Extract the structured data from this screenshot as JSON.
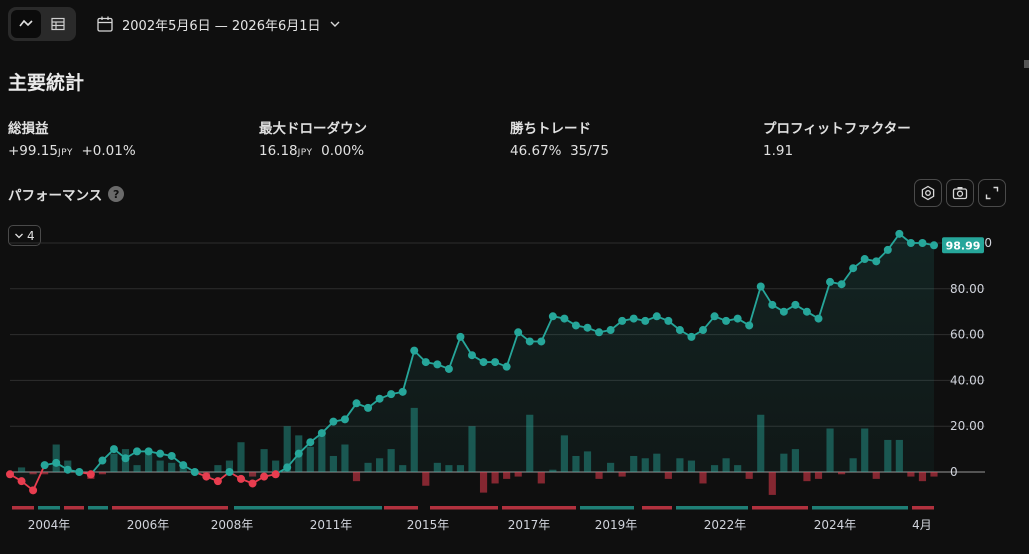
{
  "toolbar": {
    "chart_view_icon": "line-chart-icon",
    "table_view_icon": "table-icon",
    "calendar_icon": "calendar-icon",
    "date_range": "2002年5月6日 — 2026年6月1日"
  },
  "header": {
    "title": "主要統計"
  },
  "stats": {
    "net_profit": {
      "label": "総損益",
      "value": "+99.15",
      "unit": "JPY",
      "percent": "+0.01%"
    },
    "max_drawdown": {
      "label": "最大ドローダウン",
      "value": "16.18",
      "unit": "JPY",
      "percent": "0.00%"
    },
    "win_trades": {
      "label": "勝ちトレード",
      "percent": "46.67%",
      "ratio": "35/75"
    },
    "profit_factor": {
      "label": "プロフィットファクター",
      "value": "1.91"
    }
  },
  "performance": {
    "title": "パフォーマンス",
    "help": "?",
    "collapse_count": "4",
    "settings_icon": "settings-icon",
    "screenshot_icon": "camera-icon",
    "fullscreen_icon": "fullscreen-icon"
  },
  "colors": {
    "up": "#26a69a",
    "down": "#e83d4f",
    "background": "#0f0f0f"
  },
  "chart_data": {
    "type": "line",
    "series": [
      {
        "values": [
          -1,
          -4,
          -8,
          3,
          4,
          1,
          0,
          -1,
          5,
          10,
          6,
          9,
          9,
          8,
          7,
          3,
          0,
          -2,
          -4,
          0,
          -3,
          -5,
          -2,
          -1,
          2,
          8,
          13,
          17,
          22,
          23,
          30,
          28,
          32,
          34,
          35,
          53,
          48,
          47,
          45,
          59,
          51,
          48,
          48,
          46,
          61,
          57,
          57,
          68,
          67,
          64,
          63,
          61,
          62,
          66,
          67,
          66,
          68,
          66,
          62,
          59,
          62,
          68,
          66,
          67,
          64,
          81,
          73,
          70,
          73,
          70,
          67,
          83,
          82,
          89,
          93,
          92,
          97,
          104,
          100,
          100,
          99
        ]
      }
    ],
    "bars": [
      -1,
      2,
      -1,
      -1,
      12,
      5,
      -1,
      -3,
      -1,
      8,
      10,
      3,
      8,
      5,
      4,
      2,
      -1,
      -2,
      3,
      5,
      13,
      -2,
      10,
      5,
      20,
      16,
      11,
      18,
      7,
      12,
      -4,
      4,
      6,
      10,
      3,
      28,
      -6,
      4,
      3,
      3,
      20,
      -9,
      -5,
      -3,
      -2,
      25,
      -5,
      1,
      16,
      7,
      9,
      -3,
      4,
      -2,
      7,
      6,
      8,
      -3,
      6,
      5,
      -5,
      3,
      6,
      3,
      -3,
      25,
      -10,
      8,
      10,
      -4,
      -3,
      19,
      -1,
      6,
      19,
      -3,
      14,
      14,
      -2,
      -4,
      -2
    ],
    "last_value_label": "98.99",
    "y_ticks": [
      "100.00",
      "80.00",
      "60.00",
      "40.00",
      "20.00",
      "0"
    ],
    "ylim": [
      -15,
      108
    ],
    "x_ticks": [
      "2004年",
      "2006年",
      "2008年",
      "2011年",
      "2015年",
      "2017年",
      "2019年",
      "2022年",
      "2024年",
      "4月"
    ],
    "grid": true
  }
}
